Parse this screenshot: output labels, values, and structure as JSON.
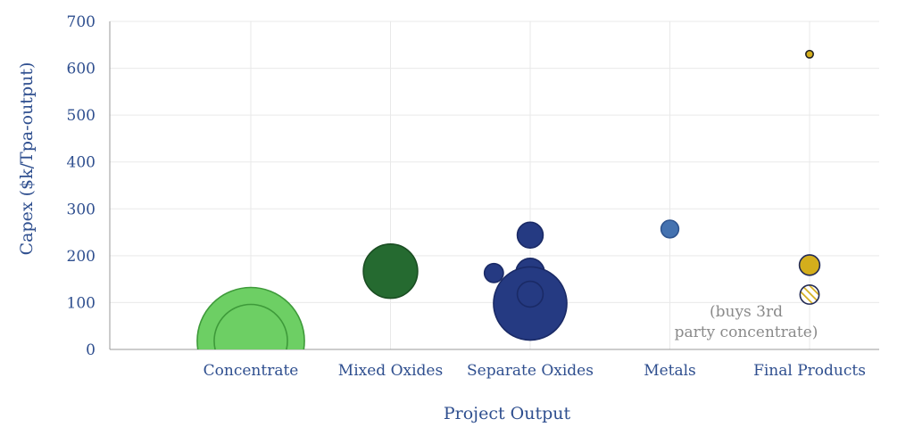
{
  "chart_data": {
    "type": "scatter",
    "subtype": "bubble",
    "xlabel": "Project Output",
    "ylabel": "Capex ($k/Tpa-output)",
    "categories": [
      "Concentrate",
      "Mixed Oxides",
      "Separate Oxides",
      "Metals",
      "Final Products"
    ],
    "ylim": [
      0,
      700
    ],
    "yticks": [
      0,
      100,
      200,
      300,
      400,
      500,
      600,
      700
    ],
    "grid": true,
    "points": [
      {
        "category": "Concentrate",
        "offset": 0,
        "y": 95,
        "size": 1.0,
        "color": "#6dcf64",
        "stroke": "#3e9a3a",
        "pattern": "solid"
      },
      {
        "category": "Concentrate",
        "offset": 0,
        "y": 18,
        "size": 7.9,
        "color": "#6dcf64",
        "stroke": "#3e9a3a",
        "pattern": "solid"
      },
      {
        "category": "Concentrate",
        "offset": 0,
        "y": 18,
        "size": 5.4,
        "color": "#6dcf64",
        "stroke": "#3e9a3a",
        "pattern": "solid"
      },
      {
        "category": "Mixed Oxides",
        "offset": 0,
        "y": 167,
        "size": 4.0,
        "color": "#256a30",
        "stroke": "#1a4d22",
        "pattern": "solid"
      },
      {
        "category": "Separate Oxides",
        "offset": -0.5,
        "y": 163,
        "size": 1.4,
        "color": "#253a82",
        "stroke": "#1a2a66",
        "pattern": "solid"
      },
      {
        "category": "Separate Oxides",
        "offset": 0,
        "y": 244,
        "size": 1.9,
        "color": "#253a82",
        "stroke": "#1a2a66",
        "pattern": "solid"
      },
      {
        "category": "Separate Oxides",
        "offset": 0,
        "y": 164,
        "size": 2.1,
        "color": "#253a82",
        "stroke": "#1a2a66",
        "pattern": "solid"
      },
      {
        "category": "Separate Oxides",
        "offset": 0,
        "y": 98,
        "size": 5.4,
        "color": "#253a82",
        "stroke": "#1a2a66",
        "pattern": "solid"
      },
      {
        "category": "Separate Oxides",
        "offset": 0,
        "y": 118,
        "size": 1.9,
        "color": "#253a82",
        "stroke": "#1a2a66",
        "pattern": "solid"
      },
      {
        "category": "Metals",
        "offset": 0,
        "y": 257,
        "size": 1.3,
        "color": "#4472b0",
        "stroke": "#2f5590",
        "pattern": "solid"
      },
      {
        "category": "Final Products",
        "offset": 0,
        "y": 630,
        "size": 0.55,
        "color": "#d4ae1c",
        "stroke": "#222222",
        "pattern": "solid"
      },
      {
        "category": "Final Products",
        "offset": 0,
        "y": 180,
        "size": 1.5,
        "color": "#d4ae1c",
        "stroke": "#222a55",
        "pattern": "solid"
      },
      {
        "category": "Final Products",
        "offset": 0,
        "y": 117,
        "size": 1.4,
        "color": "#d4ae1c",
        "stroke": "#222a55",
        "pattern": "hatched"
      }
    ],
    "annotations": [
      {
        "text": "(buys 3rd",
        "category": "Final Products"
      },
      {
        "text": "party concentrate)",
        "category": "Final Products"
      }
    ]
  }
}
